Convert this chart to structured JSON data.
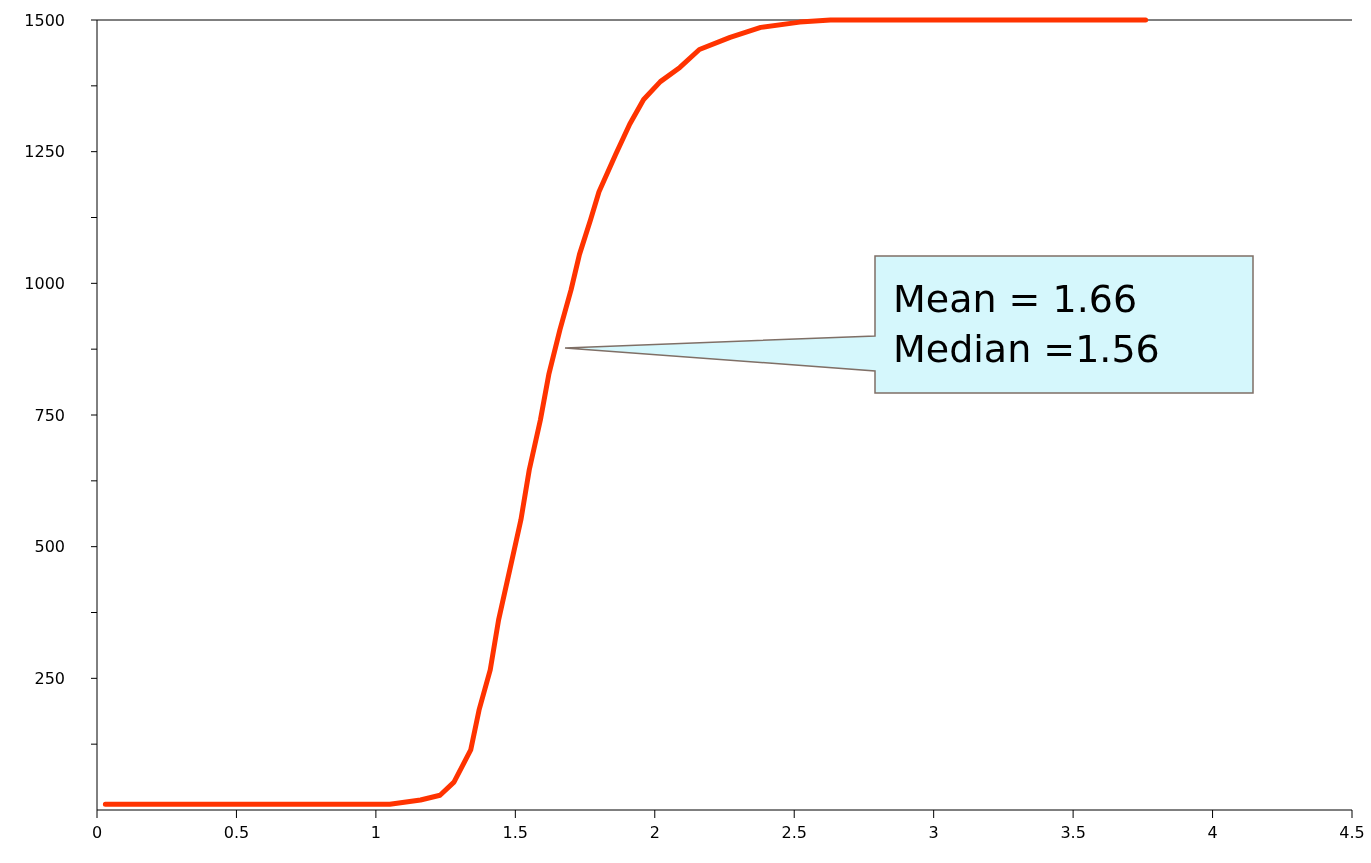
{
  "chart_data": {
    "type": "line",
    "x": [
      0.03,
      1.05,
      1.16,
      1.23,
      1.28,
      1.34,
      1.37,
      1.41,
      1.44,
      1.48,
      1.52,
      1.55,
      1.59,
      1.62,
      1.66,
      1.7,
      1.73,
      1.77,
      1.8,
      1.86,
      1.91,
      1.96,
      2.02,
      2.09,
      2.16,
      2.27,
      2.38,
      2.52,
      2.63,
      2.81,
      3.76
    ],
    "series": [
      {
        "color": "#ff3300",
        "values": [
          11,
          11,
          19,
          28,
          53,
          114,
          190,
          266,
          361,
          456,
          551,
          646,
          741,
          827,
          912,
          988,
          1055,
          1121,
          1174,
          1245,
          1302,
          1349,
          1383,
          1410,
          1444,
          1467,
          1486,
          1496,
          1500,
          1500,
          1500
        ]
      }
    ],
    "xlim": [
      0,
      4.5
    ],
    "ylim": [
      0,
      1500
    ],
    "xticks": [
      {
        "value": 0,
        "label": "0"
      },
      0.5,
      1,
      1.5,
      2,
      2.5,
      3,
      3.5,
      4,
      4.5
    ],
    "yticks": [
      {
        "value": 125,
        "label": null
      },
      250,
      {
        "value": 375,
        "label": null
      },
      500,
      {
        "value": 625,
        "label": null
      },
      750,
      {
        "value": 875,
        "label": null
      },
      1000,
      {
        "value": 1125,
        "label": null
      },
      1250,
      {
        "value": 1375,
        "label": null
      },
      1500
    ],
    "annotations": [
      "Mean = 1.66\nMedian =1.56"
    ],
    "line_style": "solid",
    "marker": "none"
  }
}
